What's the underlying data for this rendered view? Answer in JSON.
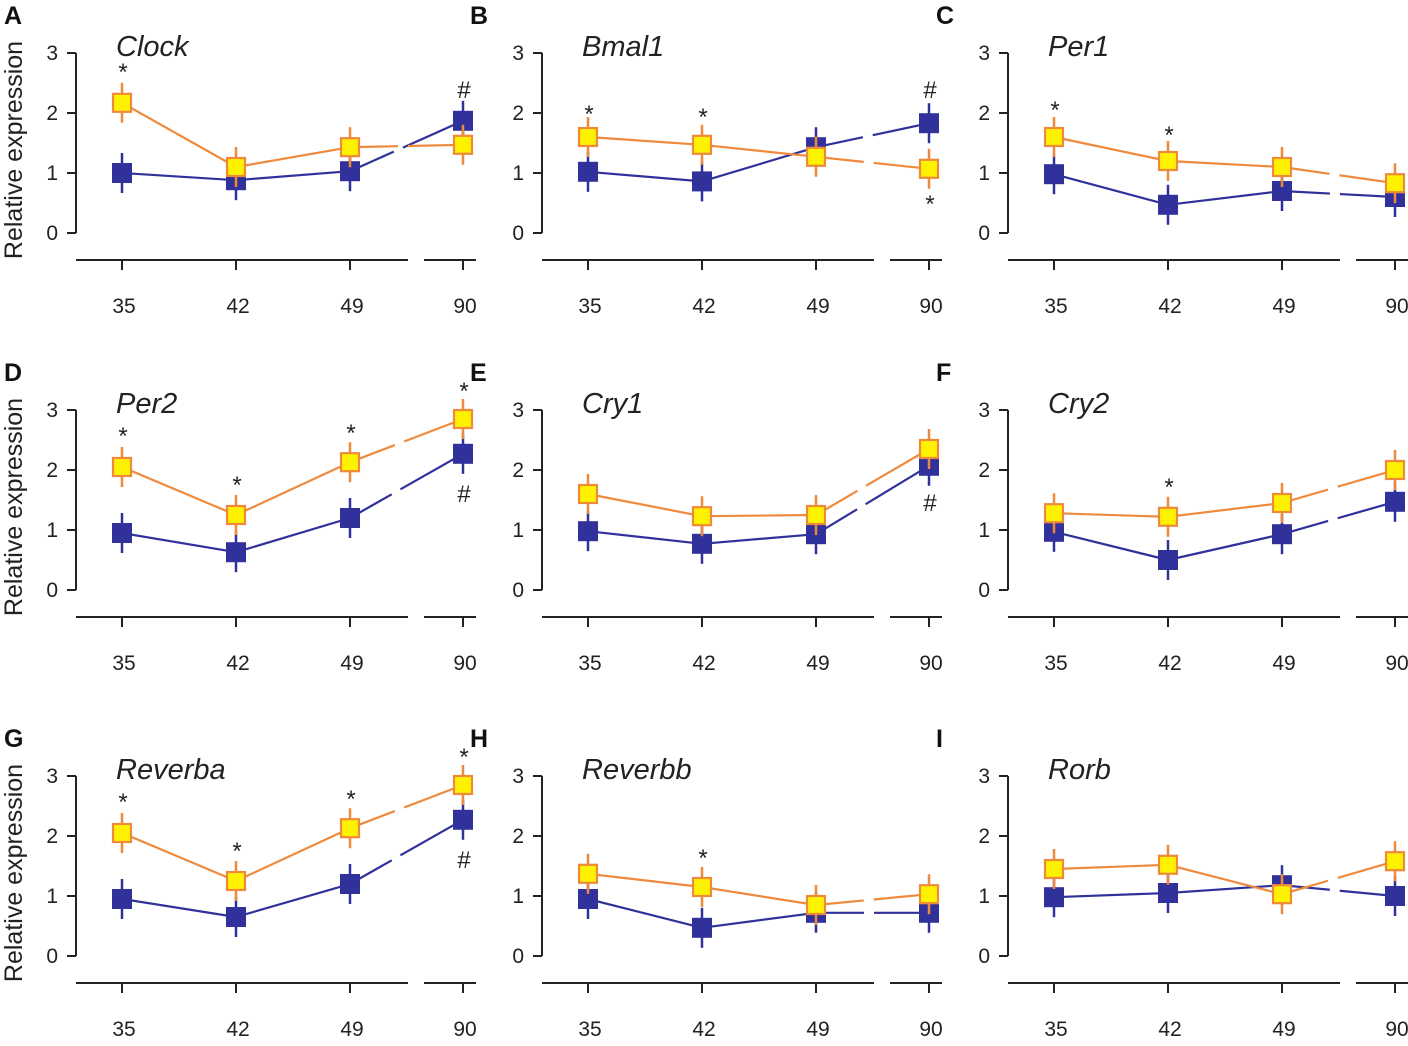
{
  "colors": {
    "control_line": "#ef8a3c",
    "control_fill": "#fff200",
    "treated": "#30319a",
    "errorbar_control": "#ef8a3c",
    "errorbar_treated": "#30319a"
  },
  "chart_data": [
    {
      "panel": "A",
      "title": "Clock",
      "type": "line",
      "ylabel": "Relative expression",
      "categories": [
        "35",
        "42",
        "49",
        "90"
      ],
      "yticks": [
        "0",
        "1",
        "2",
        "3"
      ],
      "ylim": [
        0,
        3
      ],
      "series": [
        {
          "name": "yellow",
          "values": [
            2.17,
            1.1,
            1.43,
            1.47
          ]
        },
        {
          "name": "blue",
          "values": [
            1.0,
            0.88,
            1.03,
            1.87
          ]
        }
      ],
      "annotations": [
        {
          "symbol": "*",
          "category": 0,
          "y": 2.7
        },
        {
          "symbol": "#",
          "category": 3,
          "y": 2.4
        }
      ]
    },
    {
      "panel": "B",
      "title": "Bmal1",
      "type": "line",
      "ylabel": "",
      "categories": [
        "35",
        "42",
        "49",
        "90"
      ],
      "yticks": [
        "0",
        "1",
        "2",
        "3"
      ],
      "ylim": [
        0,
        3
      ],
      "series": [
        {
          "name": "yellow",
          "values": [
            1.6,
            1.47,
            1.27,
            1.07
          ]
        },
        {
          "name": "blue",
          "values": [
            1.02,
            0.86,
            1.43,
            1.83
          ]
        }
      ],
      "annotations": [
        {
          "symbol": "*",
          "category": 0,
          "y": 2.0
        },
        {
          "symbol": "*",
          "category": 1,
          "y": 1.95
        },
        {
          "symbol": "#",
          "category": 3,
          "y": 2.4
        },
        {
          "symbol": "*",
          "category": 3,
          "y": 0.5
        }
      ]
    },
    {
      "panel": "C",
      "title": "Per1",
      "type": "line",
      "ylabel": "",
      "categories": [
        "35",
        "42",
        "49",
        "90"
      ],
      "yticks": [
        "0",
        "1",
        "2",
        "3"
      ],
      "ylim": [
        0,
        3
      ],
      "series": [
        {
          "name": "yellow",
          "values": [
            1.6,
            1.2,
            1.1,
            0.83
          ]
        },
        {
          "name": "blue",
          "values": [
            0.98,
            0.47,
            0.7,
            0.6
          ]
        }
      ],
      "annotations": [
        {
          "symbol": "*",
          "category": 0,
          "y": 2.07
        },
        {
          "symbol": "*",
          "category": 1,
          "y": 1.65
        }
      ]
    },
    {
      "panel": "D",
      "title": "Per2",
      "type": "line",
      "ylabel": "Relative expression",
      "categories": [
        "35",
        "42",
        "49",
        "90"
      ],
      "yticks": [
        "0",
        "1",
        "2",
        "3"
      ],
      "ylim": [
        0,
        3
      ],
      "series": [
        {
          "name": "yellow",
          "values": [
            2.05,
            1.25,
            2.13,
            2.85
          ]
        },
        {
          "name": "blue",
          "values": [
            0.95,
            0.63,
            1.2,
            2.27
          ]
        }
      ],
      "annotations": [
        {
          "symbol": "*",
          "category": 0,
          "y": 2.58
        },
        {
          "symbol": "*",
          "category": 1,
          "y": 1.77
        },
        {
          "symbol": "*",
          "category": 2,
          "y": 2.63
        },
        {
          "symbol": "*",
          "category": 3,
          "y": 3.33
        },
        {
          "symbol": "#",
          "category": 3,
          "y": 1.62
        }
      ]
    },
    {
      "panel": "E",
      "title": "Cry1",
      "type": "line",
      "ylabel": "",
      "categories": [
        "35",
        "42",
        "49",
        "90"
      ],
      "yticks": [
        "0",
        "1",
        "2",
        "3"
      ],
      "ylim": [
        0,
        3
      ],
      "series": [
        {
          "name": "yellow",
          "values": [
            1.6,
            1.23,
            1.25,
            2.35
          ]
        },
        {
          "name": "blue",
          "values": [
            0.98,
            0.77,
            0.93,
            2.07
          ]
        }
      ],
      "annotations": [
        {
          "symbol": "#",
          "category": 3,
          "y": 1.47
        }
      ]
    },
    {
      "panel": "F",
      "title": "Cry2",
      "type": "line",
      "ylabel": "",
      "categories": [
        "35",
        "42",
        "49",
        "90"
      ],
      "yticks": [
        "0",
        "1",
        "2",
        "3"
      ],
      "ylim": [
        0,
        3
      ],
      "series": [
        {
          "name": "yellow",
          "values": [
            1.28,
            1.22,
            1.45,
            2.0
          ]
        },
        {
          "name": "blue",
          "values": [
            0.97,
            0.5,
            0.93,
            1.47
          ]
        }
      ],
      "annotations": [
        {
          "symbol": "*",
          "category": 1,
          "y": 1.73
        }
      ]
    },
    {
      "panel": "G",
      "title": "Reverba",
      "type": "line",
      "ylabel": "Relative expression",
      "categories": [
        "35",
        "42",
        "49",
        "90"
      ],
      "yticks": [
        "0",
        "1",
        "2",
        "3"
      ],
      "ylim": [
        0,
        3
      ],
      "series": [
        {
          "name": "yellow",
          "values": [
            2.05,
            1.25,
            2.13,
            2.85
          ]
        },
        {
          "name": "blue",
          "values": [
            0.95,
            0.65,
            1.2,
            2.27
          ]
        }
      ],
      "annotations": [
        {
          "symbol": "*",
          "category": 0,
          "y": 2.58
        },
        {
          "symbol": "*",
          "category": 1,
          "y": 1.77
        },
        {
          "symbol": "*",
          "category": 2,
          "y": 2.63
        },
        {
          "symbol": "*",
          "category": 3,
          "y": 3.33
        },
        {
          "symbol": "#",
          "category": 3,
          "y": 1.62
        }
      ]
    },
    {
      "panel": "H",
      "title": "Reverbb",
      "type": "line",
      "ylabel": "",
      "categories": [
        "35",
        "42",
        "49",
        "90"
      ],
      "yticks": [
        "0",
        "1",
        "2",
        "3"
      ],
      "ylim": [
        0,
        3
      ],
      "series": [
        {
          "name": "yellow",
          "values": [
            1.37,
            1.15,
            0.85,
            1.03
          ]
        },
        {
          "name": "blue",
          "values": [
            0.95,
            0.47,
            0.72,
            0.72
          ]
        }
      ],
      "annotations": [
        {
          "symbol": "*",
          "category": 1,
          "y": 1.65
        }
      ]
    },
    {
      "panel": "I",
      "title": "Rorb",
      "type": "line",
      "ylabel": "",
      "categories": [
        "35",
        "42",
        "49",
        "90"
      ],
      "yticks": [
        "0",
        "1",
        "2",
        "3"
      ],
      "ylim": [
        0,
        3
      ],
      "series": [
        {
          "name": "yellow",
          "values": [
            1.45,
            1.52,
            1.03,
            1.58
          ]
        },
        {
          "name": "blue",
          "values": [
            0.98,
            1.05,
            1.18,
            1.0
          ]
        }
      ],
      "annotations": []
    }
  ]
}
